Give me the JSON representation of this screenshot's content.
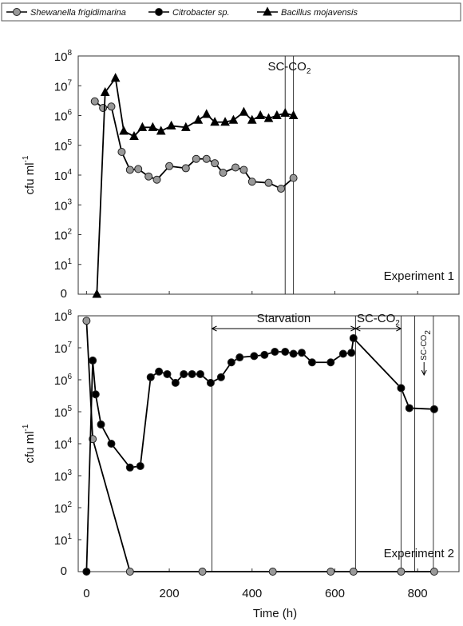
{
  "legend": [
    {
      "name": "Shewanella frigidimarina",
      "marker": "circle",
      "color": "#999999"
    },
    {
      "name": "Citrobacter sp.",
      "marker": "circle",
      "color": "#000000"
    },
    {
      "name": "Bacillus mojavensis",
      "marker": "triangle",
      "color": "#000000"
    }
  ],
  "chart_data": [
    {
      "type": "line",
      "yscale": "log",
      "y_label": {
        "text": "cfu ml",
        "sup": "-1"
      },
      "panel_label": "Experiment 1",
      "annotations": [
        {
          "text": "SC-CO",
          "sub": "2"
        }
      ],
      "vlines": [
        480,
        500
      ],
      "xlim": [
        -20,
        900
      ],
      "xticks": [
        0,
        200,
        400,
        600,
        800
      ],
      "xtick_labels": false,
      "ylim": [
        0,
        100000000
      ],
      "yticks": [
        0,
        {
          "value": 10,
          "label": "10",
          "exponent": "1"
        },
        {
          "value": 100,
          "label": "10",
          "exponent": "2"
        },
        {
          "value": 1000,
          "label": "10",
          "exponent": "3"
        },
        {
          "value": 10000,
          "label": "10",
          "exponent": "4"
        },
        {
          "value": 100000,
          "label": "10",
          "exponent": "5"
        },
        {
          "value": 1000000,
          "label": "10",
          "exponent": "6"
        },
        {
          "value": 10000000,
          "label": "10",
          "exponent": "7"
        },
        {
          "value": 100000000,
          "label": "10",
          "exponent": "8"
        }
      ],
      "series": [
        {
          "marker": "circle",
          "color": "#999999",
          "x": [
            20,
            40,
            60,
            85,
            105,
            125,
            150,
            170,
            200,
            240,
            265,
            290,
            310,
            330,
            360,
            380,
            400,
            440,
            470,
            500
          ],
          "values": [
            3000000,
            1800000,
            2000000,
            60000,
            15000,
            16000,
            9000,
            7000,
            20000,
            17000,
            35000,
            35000,
            25000,
            12000,
            18000,
            15000,
            6000,
            5500,
            3500,
            8000
          ]
        },
        {
          "marker": "triangle",
          "color": "#000000",
          "x": [
            25,
            45,
            70,
            90,
            115,
            135,
            160,
            180,
            205,
            240,
            270,
            290,
            310,
            335,
            355,
            380,
            400,
            420,
            440,
            460,
            480,
            500
          ],
          "values": [
            0,
            6000000,
            18000000,
            300000,
            200000,
            400000,
            400000,
            300000,
            450000,
            400000,
            700000,
            1100000,
            600000,
            600000,
            700000,
            1300000,
            700000,
            1000000,
            800000,
            1000000,
            1200000,
            1000000
          ]
        }
      ]
    },
    {
      "type": "line",
      "yscale": "log",
      "y_label": {
        "text": "cfu ml",
        "sup": "-1"
      },
      "x_label": "Time (h)",
      "panel_label": "Experiment 2",
      "annotations": [
        {
          "text": "Starvation"
        },
        {
          "text": "SC-CO",
          "sub": "2"
        },
        {
          "text": "SC-CO",
          "sub": "2"
        }
      ],
      "vlines": [
        303,
        650,
        760,
        793,
        838
      ],
      "xlim": [
        -20,
        900
      ],
      "xticks": [
        0,
        200,
        400,
        600,
        800
      ],
      "xtick_labels": true,
      "ylim": [
        0,
        100000000
      ],
      "yticks": [
        0,
        {
          "value": 10,
          "label": "10",
          "exponent": "1"
        },
        {
          "value": 100,
          "label": "10",
          "exponent": "2"
        },
        {
          "value": 1000,
          "label": "10",
          "exponent": "3"
        },
        {
          "value": 10000,
          "label": "10",
          "exponent": "4"
        },
        {
          "value": 100000,
          "label": "10",
          "exponent": "5"
        },
        {
          "value": 1000000,
          "label": "10",
          "exponent": "6"
        },
        {
          "value": 10000000,
          "label": "10",
          "exponent": "7"
        },
        {
          "value": 100000000,
          "label": "10",
          "exponent": "8"
        }
      ],
      "series": [
        {
          "marker": "circle",
          "color": "#999999",
          "x": [
            0,
            15,
            105,
            280,
            450,
            590,
            645,
            760,
            840
          ],
          "values": [
            70000000,
            14000,
            0,
            0,
            0,
            0,
            0,
            0,
            0
          ]
        },
        {
          "marker": "circle",
          "color": "#000000",
          "x": [
            0,
            15,
            22,
            35,
            60,
            105,
            130,
            155,
            175,
            195,
            215,
            235,
            255,
            275,
            300,
            325,
            350,
            370,
            405,
            430,
            455,
            480,
            500,
            520,
            545,
            590,
            620,
            640,
            645,
            760,
            780,
            840
          ],
          "values": [
            0,
            4000000,
            350000,
            40000,
            10000,
            1800,
            2000,
            1200000,
            1800000,
            1500000,
            800000,
            1500000,
            1500000,
            1500000,
            800000,
            1200000,
            3500000,
            5000000,
            5500000,
            6000000,
            7500000,
            7500000,
            6500000,
            7000000,
            3500000,
            3500000,
            6500000,
            7000000,
            20000000,
            550000,
            130000,
            120000
          ]
        }
      ]
    }
  ]
}
